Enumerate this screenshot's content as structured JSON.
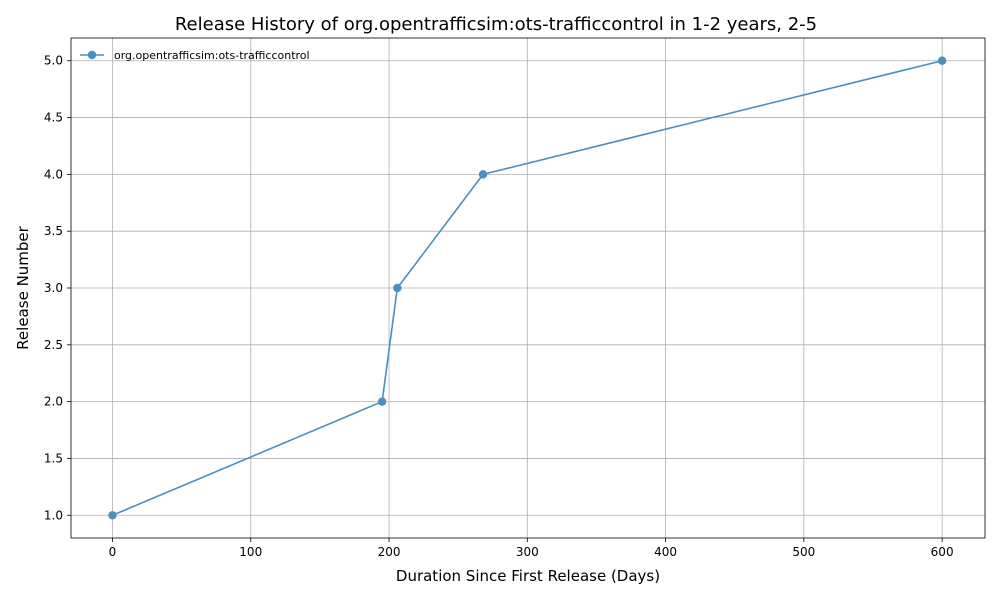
{
  "chart_data": {
    "type": "line",
    "title": "Release History of org.opentrafficsim:ots-trafficcontrol in 1-2 years, 2-5",
    "xlabel": "Duration Since First Release (Days)",
    "ylabel": "Release Number",
    "xlim": [
      -30,
      631
    ],
    "ylim": [
      0.8,
      5.2
    ],
    "xticks": [
      0,
      100,
      200,
      300,
      400,
      500,
      600
    ],
    "xtick_labels": [
      "0",
      "100",
      "200",
      "300",
      "400",
      "500",
      "600"
    ],
    "yticks": [
      1.0,
      1.5,
      2.0,
      2.5,
      3.0,
      3.5,
      4.0,
      4.5,
      5.0
    ],
    "ytick_labels": [
      "1.0",
      "1.5",
      "2.0",
      "2.5",
      "3.0",
      "3.5",
      "4.0",
      "4.5",
      "5.0"
    ],
    "grid": true,
    "legend_position": "top-left",
    "series": [
      {
        "name": "org.opentrafficsim:ots-trafficcontrol",
        "color": "#4a90c0",
        "marker": "circle",
        "x": [
          0,
          195,
          206,
          268,
          600
        ],
        "y": [
          1,
          2,
          3,
          4,
          5
        ]
      }
    ]
  }
}
